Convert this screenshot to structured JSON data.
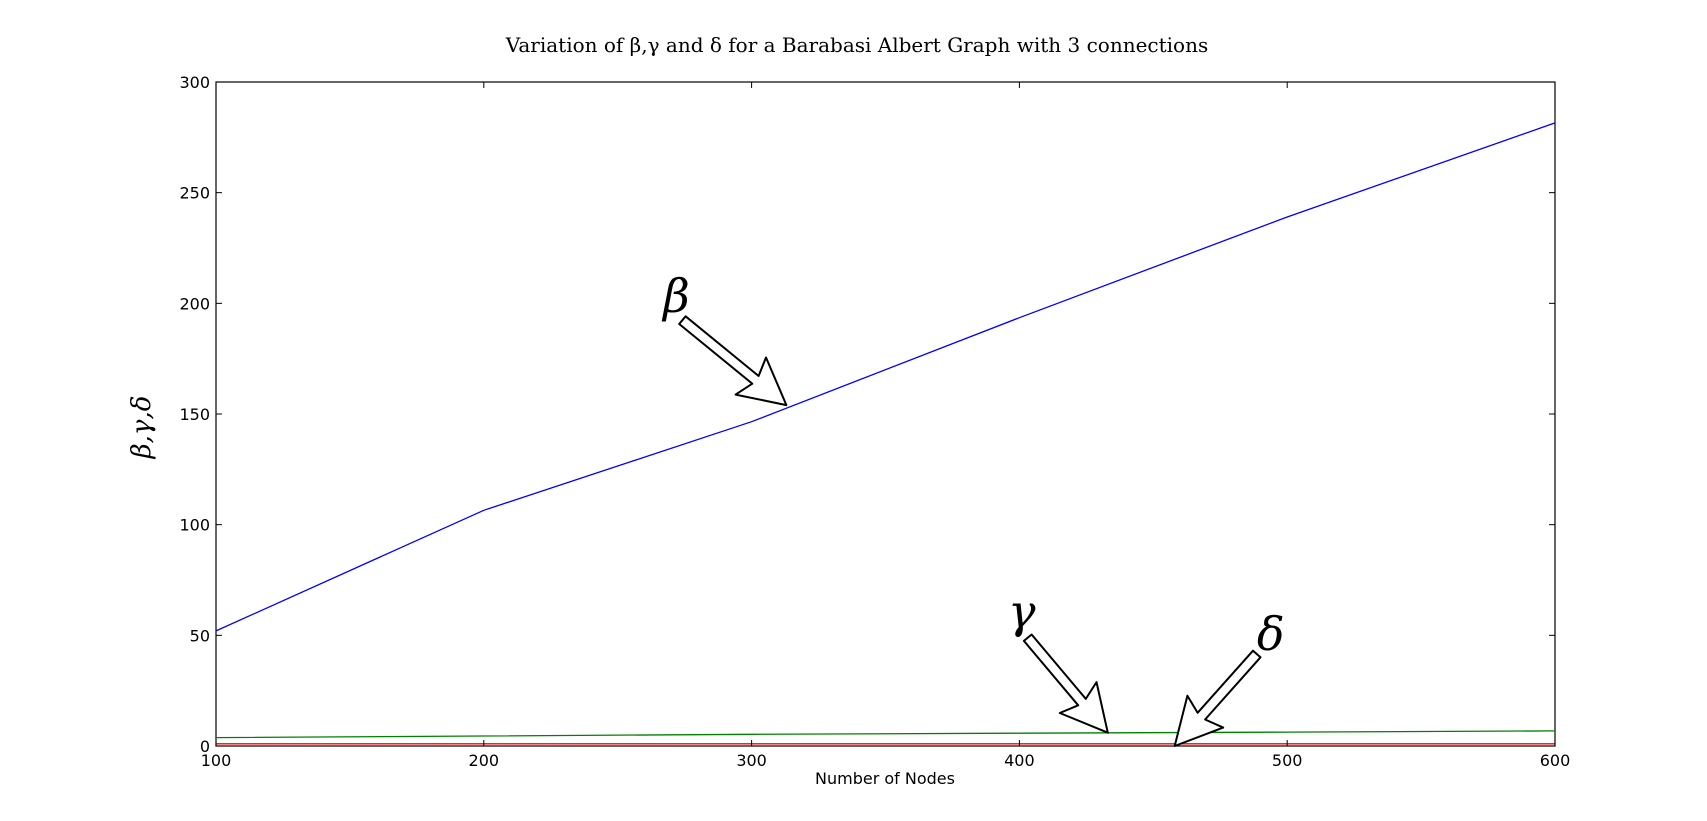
{
  "chart_data": {
    "type": "line",
    "title": "Variation of β,γ and δ for a Barabasi Albert Graph with 3 connections",
    "xlabel": "Number of Nodes",
    "ylabel": "β,γ,δ",
    "xlim": [
      100,
      600
    ],
    "ylim": [
      0,
      300
    ],
    "xticks": [
      "100",
      "200",
      "300",
      "400",
      "500",
      "600"
    ],
    "yticks": [
      "0",
      "50",
      "100",
      "150",
      "200",
      "250",
      "300"
    ],
    "grid": false,
    "x": [
      100,
      200,
      300,
      400,
      500,
      600
    ],
    "series": [
      {
        "color": "#0000ff",
        "values": [
          52,
          106.5,
          146.5,
          193.5,
          239,
          281.5
        ]
      },
      {
        "color": "#008000",
        "values": [
          3.8,
          4.5,
          5.3,
          5.8,
          6.3,
          6.8
        ]
      },
      {
        "color": "#ff0000",
        "values": [
          1.0,
          1.0,
          1.0,
          1.0,
          1.0,
          1.0
        ]
      }
    ],
    "annotations": [
      {
        "text": "β",
        "arrow_to": [
          313,
          154
        ]
      },
      {
        "text": "γ",
        "arrow_to": [
          433,
          6
        ]
      },
      {
        "text": "δ",
        "arrow_to": [
          458,
          0
        ]
      }
    ]
  }
}
